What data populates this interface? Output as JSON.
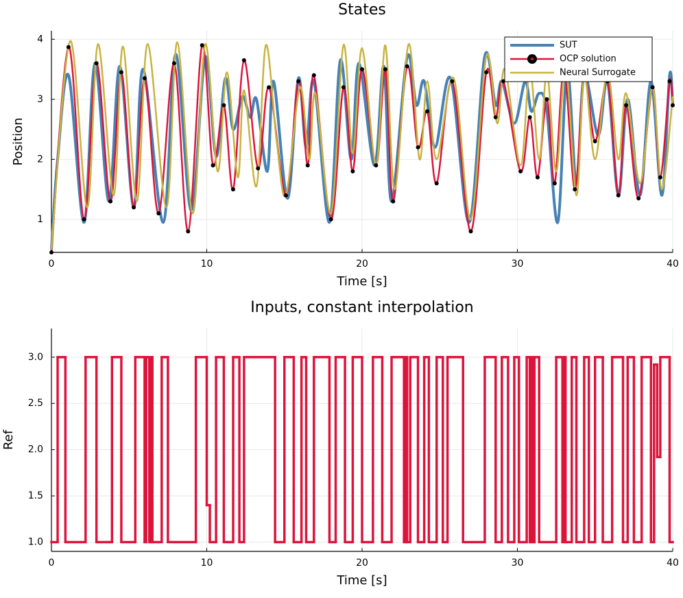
{
  "chart_data": [
    {
      "type": "line",
      "title": "States",
      "xlabel": "Time [s]",
      "ylabel": "Position",
      "xlim": [
        0,
        40
      ],
      "xticks": [
        0,
        10,
        20,
        30,
        40
      ],
      "ylim": [
        0.45,
        4.14
      ],
      "yticks": [
        1,
        2,
        3,
        4
      ],
      "grid": true,
      "legend": "upper right",
      "series": [
        {
          "name": "SUT",
          "color": "#4682b4",
          "markers": false,
          "x": [
            0,
            0.4,
            1.1,
            2.1,
            2.8,
            3.7,
            4.4,
            5.3,
            5.9,
            7.2,
            8.0,
            9.0,
            9.9,
            10.6,
            11.2,
            11.7,
            12.3,
            12.8,
            13.2,
            13.9,
            14.3,
            15.2,
            15.9,
            16.4,
            16.9,
            17.9,
            18.6,
            19.3,
            19.8,
            20.8,
            21.4,
            21.9,
            22.9,
            23.5,
            24.0,
            24.7,
            25.7,
            26.9,
            27.9,
            28.6,
            29.0,
            29.8,
            30.5,
            30.9,
            31.4,
            31.9,
            32.6,
            33.2,
            33.8,
            34.3,
            35.2,
            35.8,
            36.5,
            37.1,
            37.9,
            38.6,
            39.3,
            39.8,
            40
          ],
          "values": [
            0.5,
            2.0,
            3.4,
            0.95,
            3.6,
            1.3,
            3.55,
            1.2,
            3.5,
            0.95,
            3.75,
            1.15,
            3.7,
            2.05,
            3.35,
            2.5,
            3.05,
            2.7,
            3.0,
            1.8,
            3.3,
            1.35,
            3.35,
            2.2,
            3.3,
            0.95,
            3.65,
            2.0,
            3.6,
            1.9,
            3.55,
            1.3,
            3.7,
            2.9,
            3.3,
            2.2,
            3.35,
            0.95,
            3.72,
            2.9,
            3.3,
            2.6,
            3.3,
            2.8,
            3.1,
            2.8,
            0.95,
            3.5,
            1.6,
            3.4,
            2.4,
            3.3,
            1.4,
            3.0,
            1.4,
            3.3,
            1.4,
            3.4,
            2.9
          ]
        },
        {
          "name": "OCP solution",
          "color": "#dc143c",
          "markers": true,
          "x": [
            0,
            1.1,
            2.1,
            2.9,
            3.8,
            4.5,
            5.3,
            6.0,
            6.9,
            7.9,
            8.8,
            9.7,
            10.4,
            11.1,
            11.7,
            12.4,
            13.3,
            14.0,
            15.1,
            15.9,
            16.5,
            16.9,
            18.0,
            18.8,
            19.4,
            20.0,
            20.9,
            21.5,
            22.0,
            22.9,
            23.6,
            24.2,
            24.8,
            25.8,
            27.0,
            28.0,
            28.6,
            29.1,
            30.2,
            30.8,
            31.3,
            31.9,
            32.4,
            33.0,
            33.7,
            34.3,
            35.0,
            35.8,
            36.5,
            37.0,
            37.8,
            38.7,
            39.2,
            39.8,
            40
          ],
          "values": [
            0.45,
            3.87,
            1.0,
            3.6,
            1.3,
            3.45,
            1.2,
            3.35,
            1.1,
            3.6,
            0.8,
            3.9,
            1.9,
            2.9,
            1.5,
            3.65,
            1.85,
            3.2,
            1.4,
            3.3,
            1.9,
            3.4,
            1.0,
            3.2,
            1.8,
            3.5,
            1.9,
            3.5,
            1.3,
            3.55,
            2.2,
            2.8,
            1.6,
            3.3,
            0.8,
            3.45,
            2.7,
            3.3,
            1.8,
            2.7,
            1.7,
            3.0,
            1.6,
            3.5,
            1.5,
            3.4,
            2.3,
            3.3,
            1.4,
            2.9,
            1.35,
            3.2,
            1.7,
            3.3,
            2.9
          ]
        },
        {
          "name": "Neural Surrogate",
          "color": "#c8b340",
          "markers": false,
          "x": [
            0,
            1.2,
            2.3,
            3.0,
            4.0,
            4.6,
            5.5,
            6.2,
            7.4,
            8.1,
            9.1,
            9.9,
            10.7,
            11.3,
            12.0,
            12.4,
            13.2,
            13.8,
            14.5,
            15.1,
            16.0,
            16.6,
            17.0,
            18.0,
            18.8,
            19.4,
            20.0,
            20.9,
            21.5,
            22.1,
            23.0,
            23.7,
            24.2,
            24.8,
            25.9,
            27.0,
            28.0,
            28.7,
            29.2,
            30.2,
            30.8,
            31.4,
            31.9,
            32.5,
            33.1,
            33.8,
            34.3,
            35.0,
            35.8,
            36.5,
            37.0,
            37.9,
            38.7,
            39.3,
            40
          ],
          "values": [
            0.5,
            3.97,
            1.2,
            3.92,
            1.4,
            3.88,
            1.3,
            3.92,
            1.2,
            3.95,
            1.1,
            3.92,
            1.8,
            3.45,
            1.7,
            3.15,
            1.55,
            3.9,
            2.3,
            1.4,
            3.2,
            2.0,
            3.1,
            1.1,
            3.9,
            2.1,
            3.85,
            1.9,
            3.9,
            1.5,
            3.92,
            2.0,
            3.3,
            2.0,
            3.35,
            1.0,
            3.72,
            2.6,
            3.5,
            1.9,
            3.5,
            2.0,
            3.45,
            1.8,
            3.55,
            1.4,
            3.4,
            2.0,
            3.45,
            2.0,
            3.1,
            1.6,
            3.2,
            1.5,
            3.05
          ]
        }
      ]
    },
    {
      "type": "step",
      "title": "Inputs, constant interpolation",
      "xlabel": "Time [s]",
      "ylabel": "Ref",
      "xlim": [
        0,
        40
      ],
      "xticks": [
        0,
        10,
        20,
        30,
        40
      ],
      "ylim": [
        0.9,
        3.31
      ],
      "yticks": [
        {
          "value": 1,
          "label": "1.0"
        },
        {
          "value": 1.5,
          "label": "1.5"
        },
        {
          "value": 2,
          "label": "2.0"
        },
        {
          "value": 2.5,
          "label": "2.5"
        },
        {
          "value": 3,
          "label": "3.0"
        }
      ],
      "grid": true,
      "series": [
        {
          "color": "#dc143c",
          "x": [
            0,
            0.4,
            0.9,
            2.2,
            2.9,
            3.9,
            4.5,
            5.4,
            6.0,
            6.1,
            6.3,
            6.4,
            6.5,
            7.1,
            7.5,
            9.3,
            10.0,
            10.2,
            10.6,
            11.1,
            11.7,
            12.1,
            12.4,
            14.4,
            15.0,
            15.6,
            16.1,
            16.4,
            16.9,
            17.9,
            18.3,
            18.9,
            19.4,
            20.0,
            20.7,
            21.3,
            21.9,
            22.7,
            22.8,
            22.9,
            23.1,
            23.6,
            24.0,
            24.3,
            24.8,
            25.2,
            25.5,
            26.5,
            27.9,
            28.6,
            29.0,
            29.4,
            29.8,
            30.1,
            30.6,
            30.8,
            30.9,
            31.0,
            31.1,
            31.4,
            32.5,
            32.9,
            33.0,
            33.1,
            33.5,
            33.8,
            34.3,
            34.6,
            35.0,
            35.5,
            36.1,
            36.8,
            37.1,
            37.5,
            38.0,
            38.6,
            38.8,
            39.0,
            39.2,
            39.8
          ],
          "values": [
            1,
            3,
            1,
            3,
            1,
            3,
            1,
            3,
            1,
            3,
            1,
            3,
            1,
            3,
            1,
            3,
            1.4,
            1,
            3,
            1,
            3,
            1,
            3,
            1,
            3,
            1,
            3,
            1,
            3,
            1,
            3,
            1,
            3,
            1,
            3,
            1,
            3,
            1,
            3,
            1,
            3,
            1,
            3,
            1,
            3,
            1,
            3,
            1,
            3,
            1,
            3,
            1,
            3,
            1,
            3,
            1,
            3,
            1,
            3,
            1,
            3,
            1,
            3,
            1,
            3,
            1,
            3,
            1,
            3,
            1,
            3,
            1,
            3,
            1,
            3,
            1,
            2.92,
            1.92,
            3,
            1
          ]
        }
      ]
    }
  ]
}
